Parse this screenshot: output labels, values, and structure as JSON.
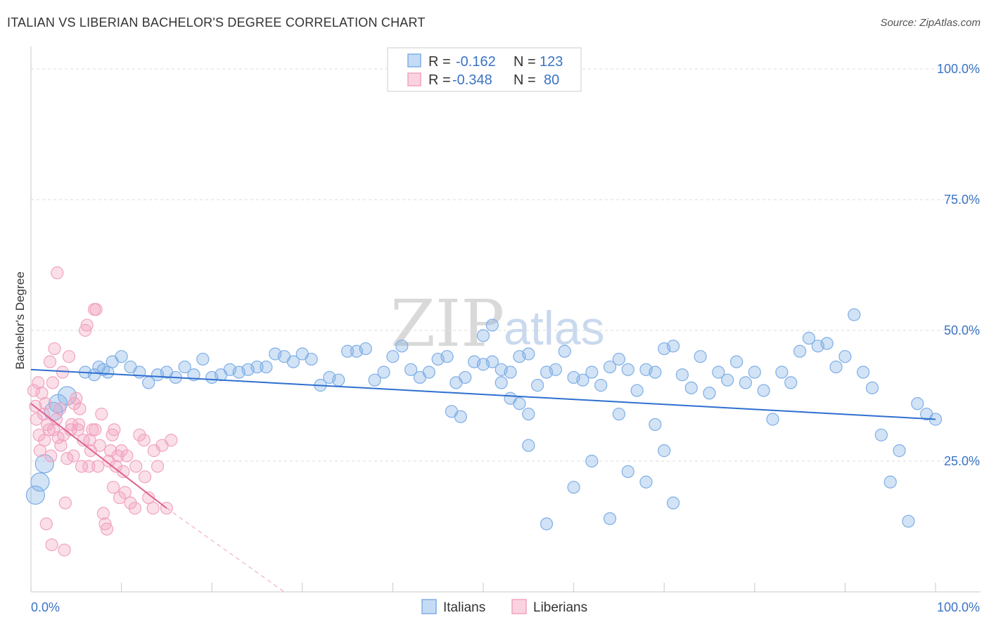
{
  "header": {
    "title": "ITALIAN VS LIBERIAN BACHELOR'S DEGREE CORRELATION CHART",
    "source": "Source: ZipAtlas.com"
  },
  "legend": {
    "items": [
      {
        "name": "Italians",
        "r_label": "R =",
        "r_value": "-0.162",
        "n_label": "N =",
        "n_value": "123",
        "color": "#7eaee6"
      },
      {
        "name": "Liberians",
        "r_label": "R =",
        "r_value": "-0.348",
        "n_label": "N =",
        "n_value": "80",
        "color": "#f2a3bf"
      }
    ]
  },
  "watermark": {
    "zip": "ZIP",
    "atlas": "atlas"
  },
  "chart_data": {
    "type": "scatter",
    "title": "ITALIAN VS LIBERIAN BACHELOR'S DEGREE CORRELATION CHART",
    "xlabel": "",
    "ylabel": "Bachelor's Degree",
    "xlim": [
      0,
      100
    ],
    "ylim": [
      0,
      100
    ],
    "x_tick_labels": [
      {
        "value": 0,
        "label": "0.0%"
      },
      {
        "value": 100,
        "label": "100.0%"
      }
    ],
    "y_tick_labels": [
      {
        "value": 25,
        "label": "25.0%"
      },
      {
        "value": 50,
        "label": "50.0%"
      },
      {
        "value": 75,
        "label": "75.0%"
      },
      {
        "value": 100,
        "label": "100.0%"
      }
    ],
    "grid": true,
    "legend_position": "top-center",
    "series": [
      {
        "name": "Italians",
        "color": "#7eaee6",
        "line_color": "#2f6fcf",
        "trend": {
          "x0": 0,
          "y0": 42.5,
          "x1": 100,
          "y1": 33.0
        },
        "points": [
          [
            0.5,
            18.5
          ],
          [
            1,
            21
          ],
          [
            1.5,
            24.5
          ],
          [
            2.5,
            34.5
          ],
          [
            3,
            36
          ],
          [
            4,
            37.5
          ],
          [
            6,
            42
          ],
          [
            7,
            41.5
          ],
          [
            7.5,
            43
          ],
          [
            8,
            42.5
          ],
          [
            8.5,
            42
          ],
          [
            9,
            44
          ],
          [
            10,
            45
          ],
          [
            11,
            43
          ],
          [
            12,
            42
          ],
          [
            13,
            40
          ],
          [
            14,
            41.5
          ],
          [
            15,
            42
          ],
          [
            16,
            41
          ],
          [
            17,
            43
          ],
          [
            18,
            41.5
          ],
          [
            19,
            44.5
          ],
          [
            20,
            41
          ],
          [
            21,
            41.5
          ],
          [
            22,
            42.5
          ],
          [
            23,
            42
          ],
          [
            24,
            42.5
          ],
          [
            25,
            43
          ],
          [
            26,
            43
          ],
          [
            27,
            45.5
          ],
          [
            28,
            45
          ],
          [
            29,
            44
          ],
          [
            30,
            45.5
          ],
          [
            31,
            44.5
          ],
          [
            32,
            39.5
          ],
          [
            33,
            41
          ],
          [
            34,
            40.5
          ],
          [
            35,
            46
          ],
          [
            36,
            46
          ],
          [
            37,
            46.5
          ],
          [
            38,
            40.5
          ],
          [
            39,
            42
          ],
          [
            40,
            45
          ],
          [
            41,
            47
          ],
          [
            42,
            42.5
          ],
          [
            43,
            41
          ],
          [
            44,
            42
          ],
          [
            45,
            44.5
          ],
          [
            46,
            45
          ],
          [
            47,
            40
          ],
          [
            48,
            41
          ],
          [
            49,
            44
          ],
          [
            50,
            43.5
          ],
          [
            51,
            44
          ],
          [
            52,
            42.5
          ],
          [
            53,
            42
          ],
          [
            54,
            45
          ],
          [
            55,
            45.5
          ],
          [
            56,
            39.5
          ],
          [
            57,
            42
          ],
          [
            58,
            42.5
          ],
          [
            59,
            46
          ],
          [
            60,
            41
          ],
          [
            61,
            40.5
          ],
          [
            62,
            42
          ],
          [
            63,
            39.5
          ],
          [
            64,
            43
          ],
          [
            65,
            44.5
          ],
          [
            66,
            42.5
          ],
          [
            67,
            38.5
          ],
          [
            68,
            42.5
          ],
          [
            69,
            42
          ],
          [
            70,
            46.5
          ],
          [
            71,
            47
          ],
          [
            72,
            41.5
          ],
          [
            73,
            39
          ],
          [
            74,
            45
          ],
          [
            75,
            38
          ],
          [
            76,
            42
          ],
          [
            77,
            40.5
          ],
          [
            78,
            44
          ],
          [
            79,
            40
          ],
          [
            80,
            42
          ],
          [
            81,
            38.5
          ],
          [
            82,
            33
          ],
          [
            83,
            42
          ],
          [
            84,
            40
          ],
          [
            85,
            46
          ],
          [
            86,
            48.5
          ],
          [
            87,
            47
          ],
          [
            88,
            47.5
          ],
          [
            89,
            43
          ],
          [
            90,
            45
          ],
          [
            91,
            53
          ],
          [
            92,
            42
          ],
          [
            93,
            39
          ],
          [
            94,
            30
          ],
          [
            95,
            21
          ],
          [
            96,
            27
          ],
          [
            97,
            13.5
          ],
          [
            98,
            36
          ],
          [
            99,
            34
          ],
          [
            100,
            33
          ],
          [
            46.5,
            34.5
          ],
          [
            47.5,
            33.5
          ],
          [
            55,
            34
          ],
          [
            57,
            13
          ],
          [
            50,
            49
          ],
          [
            51,
            51
          ],
          [
            52,
            40
          ],
          [
            53,
            37
          ],
          [
            54,
            36
          ],
          [
            55,
            28
          ],
          [
            60,
            20
          ],
          [
            62,
            25
          ],
          [
            64,
            14
          ],
          [
            65,
            34
          ],
          [
            66,
            23
          ],
          [
            68,
            21
          ],
          [
            69,
            32
          ],
          [
            70,
            27
          ],
          [
            71,
            17
          ]
        ]
      },
      {
        "name": "Liberians",
        "color": "#f2a3bf",
        "line_color": "#e0628f",
        "trend": {
          "x0": 0,
          "y0": 36.0,
          "x1": 15,
          "y1": 16.0
        },
        "trend_dashed": {
          "x0": 15,
          "y0": 16.0,
          "x1": 28,
          "y1": 0
        },
        "points": [
          [
            0.3,
            38.5
          ],
          [
            0.5,
            35.5
          ],
          [
            0.6,
            33
          ],
          [
            0.8,
            40
          ],
          [
            0.9,
            30
          ],
          [
            1,
            27
          ],
          [
            1.2,
            38
          ],
          [
            1.4,
            34
          ],
          [
            1.5,
            29
          ],
          [
            1.6,
            36
          ],
          [
            1.8,
            32
          ],
          [
            2,
            31
          ],
          [
            2.1,
            44
          ],
          [
            2.2,
            26
          ],
          [
            2.4,
            40
          ],
          [
            2.5,
            31
          ],
          [
            2.6,
            46.5
          ],
          [
            2.8,
            33
          ],
          [
            3,
            29.5
          ],
          [
            3.2,
            35
          ],
          [
            3.3,
            28
          ],
          [
            3.5,
            42
          ],
          [
            3.6,
            30
          ],
          [
            3.8,
            17
          ],
          [
            4,
            25.5
          ],
          [
            4.2,
            45
          ],
          [
            4.4,
            31
          ],
          [
            4.5,
            32
          ],
          [
            4.7,
            26
          ],
          [
            5,
            37
          ],
          [
            5.2,
            31
          ],
          [
            5.4,
            35
          ],
          [
            5.6,
            24
          ],
          [
            5.8,
            29
          ],
          [
            6,
            50
          ],
          [
            6.2,
            51
          ],
          [
            6.4,
            24
          ],
          [
            6.6,
            27
          ],
          [
            6.8,
            31
          ],
          [
            7,
            54
          ],
          [
            7.2,
            54
          ],
          [
            7.4,
            24
          ],
          [
            7.6,
            28
          ],
          [
            7.8,
            34
          ],
          [
            8,
            15
          ],
          [
            8.2,
            13
          ],
          [
            8.4,
            12
          ],
          [
            8.6,
            25
          ],
          [
            8.8,
            27
          ],
          [
            9,
            30
          ],
          [
            9.2,
            31
          ],
          [
            9.4,
            24
          ],
          [
            9.6,
            26
          ],
          [
            9.8,
            18
          ],
          [
            10,
            27
          ],
          [
            10.2,
            23
          ],
          [
            10.4,
            19
          ],
          [
            11,
            17
          ],
          [
            11.5,
            16
          ],
          [
            12,
            30
          ],
          [
            12.5,
            29
          ],
          [
            13,
            18
          ],
          [
            13.5,
            16
          ],
          [
            14,
            24
          ],
          [
            14.5,
            28
          ],
          [
            15,
            16
          ],
          [
            15.5,
            29
          ],
          [
            2.9,
            61
          ],
          [
            1.7,
            13
          ],
          [
            2.3,
            9
          ],
          [
            3.7,
            8
          ],
          [
            4.8,
            36
          ],
          [
            5.3,
            32
          ],
          [
            6.5,
            29
          ],
          [
            7.1,
            31
          ],
          [
            9.1,
            20
          ],
          [
            10.6,
            26
          ],
          [
            11.6,
            24
          ],
          [
            12.6,
            22
          ],
          [
            13.6,
            27
          ]
        ]
      }
    ]
  }
}
